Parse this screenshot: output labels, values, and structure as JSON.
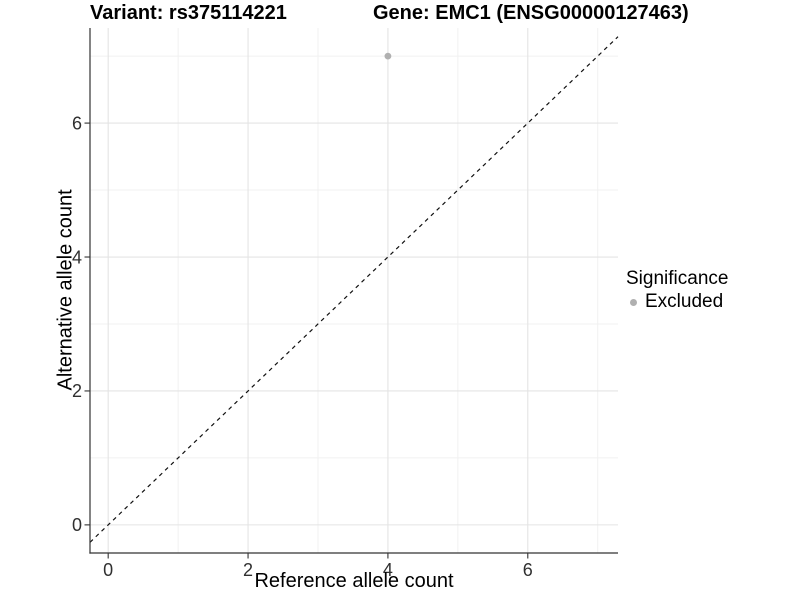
{
  "chart_data": {
    "type": "scatter",
    "title_left": "Variant: rs375114221",
    "title_right": "Gene: EMC1 (ENSG00000127463)",
    "xlabel": "Reference allele count",
    "ylabel": "Alternative allele count",
    "xlim": [
      -0.26,
      7.29
    ],
    "ylim": [
      -0.42,
      7.42
    ],
    "x_major_ticks": [
      0,
      2,
      4,
      6
    ],
    "y_major_ticks": [
      0,
      2,
      4,
      6
    ],
    "x_minor_ticks": [
      1,
      3,
      5,
      7
    ],
    "y_minor_ticks": [
      1,
      3,
      5,
      7
    ],
    "grid": true,
    "points": [
      {
        "x": 4,
        "y": 7,
        "series": "Excluded"
      }
    ],
    "reference_line": {
      "equation": "y = x",
      "slope": 1,
      "intercept": 0,
      "style": "dashed"
    },
    "legend": {
      "title": "Significance",
      "position": "right",
      "items": [
        {
          "label": "Excluded",
          "color": "#b0b0b0"
        }
      ]
    },
    "colors": {
      "point": "#b0b0b0",
      "grid_major": "#e4e4e4",
      "grid_minor": "#f1f1f1",
      "axis_line": "#333333",
      "tick_label": "#303030",
      "dashed_line": "#111111",
      "background": "#ffffff"
    }
  }
}
